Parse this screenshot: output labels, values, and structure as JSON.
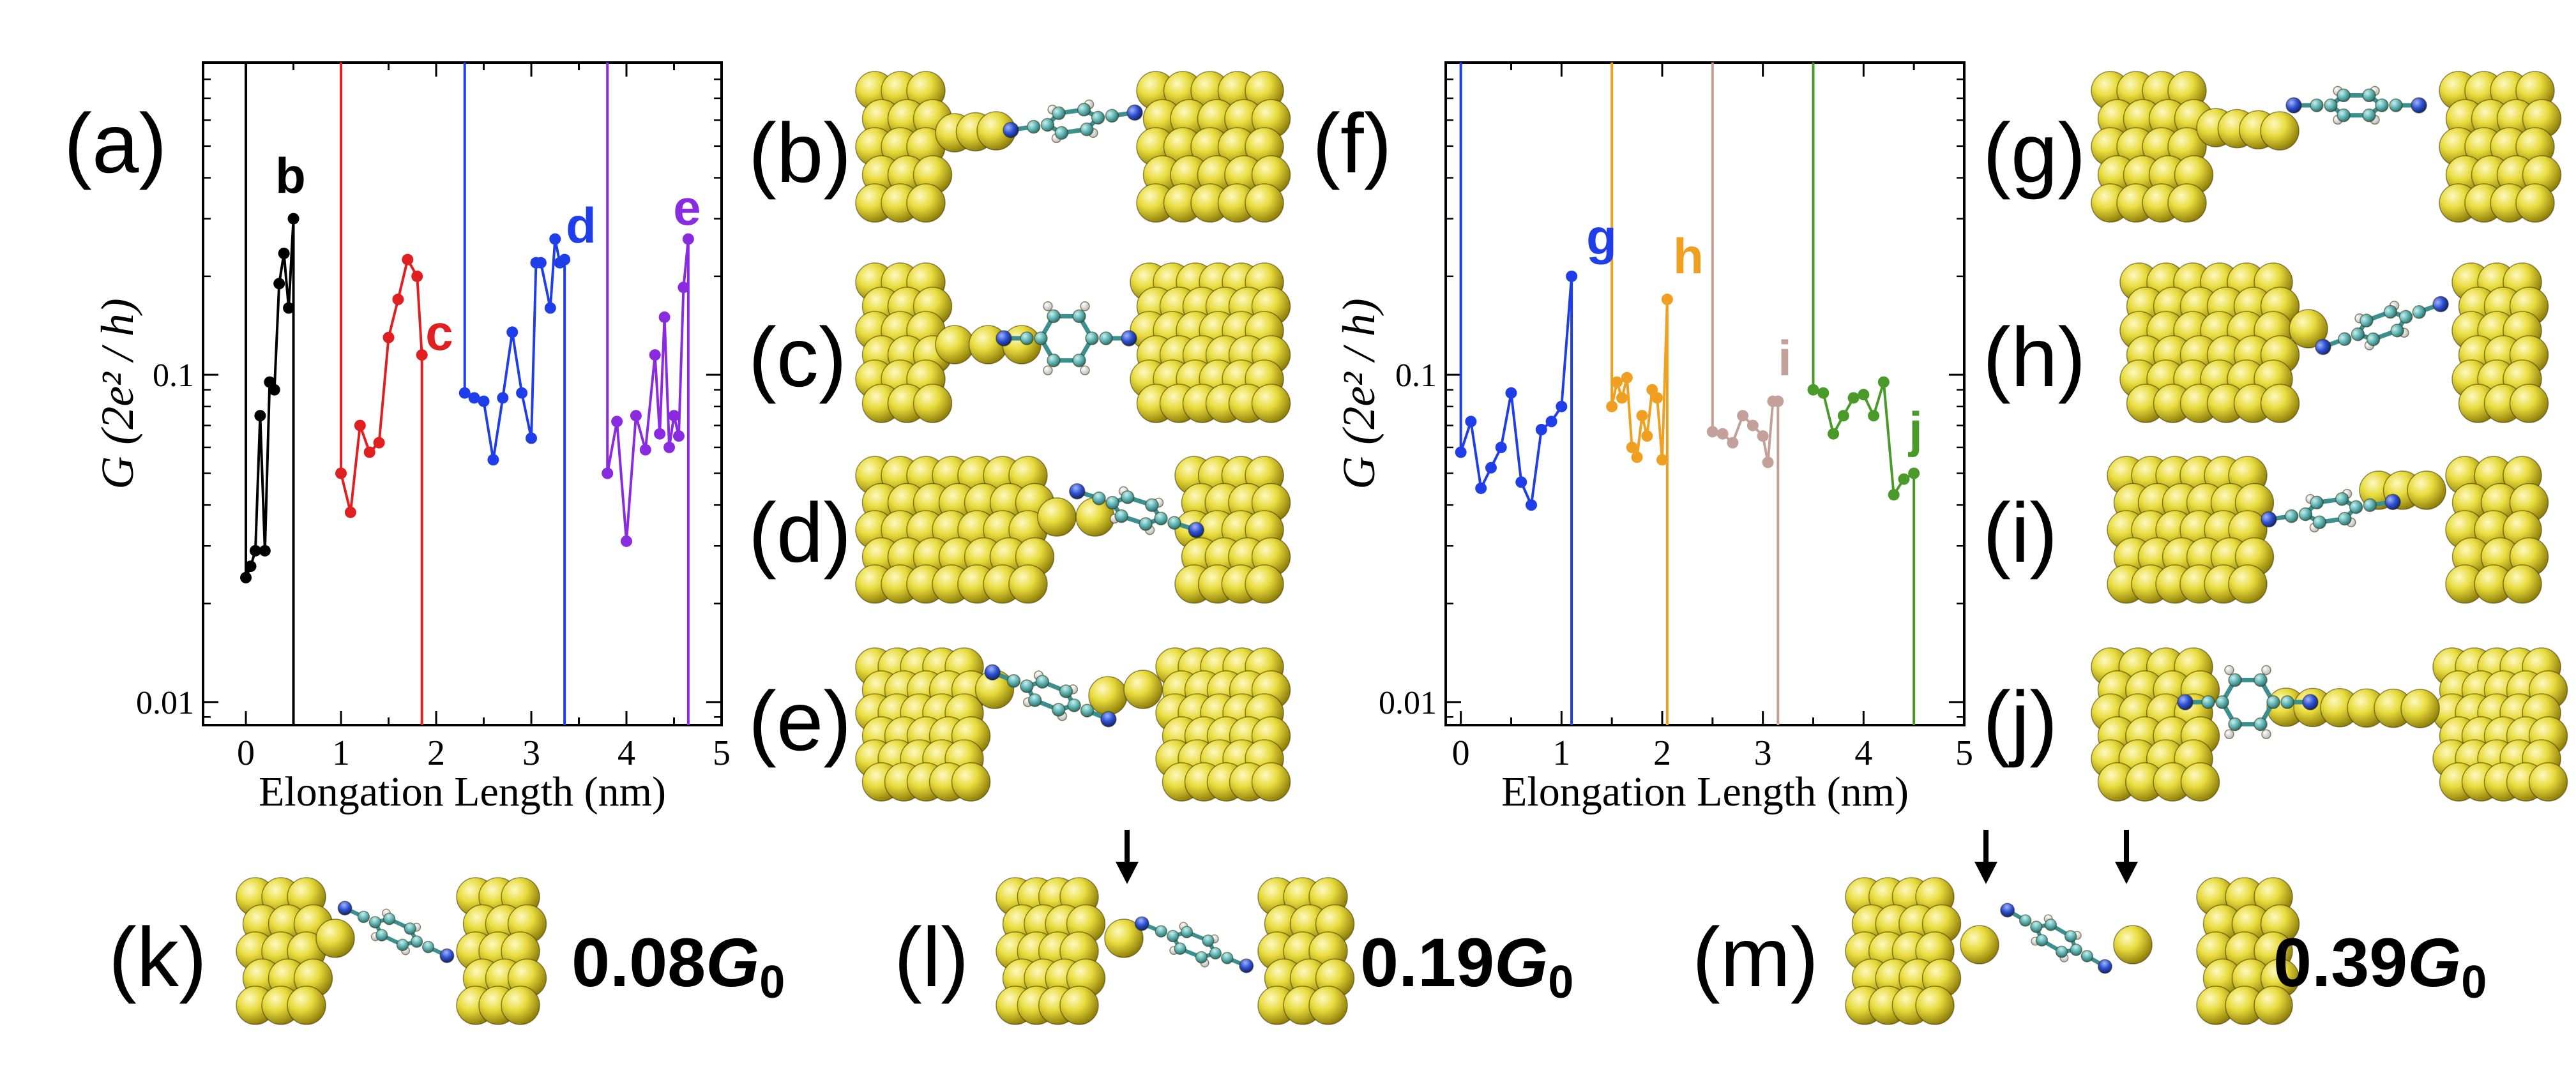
{
  "colors": {
    "gold": "#e6d93a",
    "gold_dark": "#7a6b05",
    "gold_light": "#fbf5a2",
    "carbon": "#5fb3b3",
    "nitrogen": "#2c4fd0",
    "hydrogen": "#e8e8e8"
  },
  "panel_labels": {
    "a": "(a)",
    "b": "(b)",
    "c": "(c)",
    "d": "(d)",
    "e": "(e)",
    "f": "(f)",
    "g": "(g)",
    "h": "(h)",
    "i": "(i)",
    "j": "(j)",
    "k": "(k)",
    "l": "(l)",
    "m": "(m)"
  },
  "conductance_values": {
    "k": {
      "number": "0.08",
      "g": "G",
      "sub": "0"
    },
    "l": {
      "number": "0.19",
      "g": "G",
      "sub": "0"
    },
    "m": {
      "number": "0.39",
      "g": "G",
      "sub": "0"
    }
  },
  "chart_data": [
    {
      "type": "line",
      "panel": "(a)",
      "xlabel": "Elongation Length (nm)",
      "ylabel": "G (2e²/ h)",
      "yscale": "log",
      "xlim": [
        -0.45,
        5.0
      ],
      "ylim": [
        0.0085,
        0.9
      ],
      "xticks": [
        0,
        1,
        2,
        3,
        4,
        5
      ],
      "xtick_labels": [
        "0",
        "1",
        "2",
        "3",
        "4",
        "5"
      ],
      "yticks": [
        0.01,
        0.1
      ],
      "ytick_labels": [
        "0.01",
        "0.1"
      ],
      "series": [
        {
          "name": "b",
          "color": "#000000",
          "x": [
            0.0,
            0.05,
            0.1,
            0.15,
            0.2,
            0.25,
            0.3,
            0.35,
            0.4,
            0.45,
            0.5
          ],
          "y": [
            0.024,
            0.026,
            0.029,
            0.075,
            0.029,
            0.095,
            0.09,
            0.19,
            0.235,
            0.16,
            0.3
          ],
          "break_x": 0.5,
          "label": "b"
        },
        {
          "name": "c",
          "color": "#e02020",
          "x": [
            1.0,
            1.1,
            1.2,
            1.3,
            1.4,
            1.5,
            1.6,
            1.7,
            1.8,
            1.85
          ],
          "y": [
            0.05,
            0.038,
            0.07,
            0.058,
            0.062,
            0.13,
            0.17,
            0.225,
            0.2,
            0.115
          ],
          "break_x": 1.85,
          "label": "c"
        },
        {
          "name": "d",
          "color": "#1f3de8",
          "x": [
            2.3,
            2.4,
            2.5,
            2.6,
            2.7,
            2.8,
            2.9,
            3.0,
            3.05,
            3.1,
            3.2,
            3.25,
            3.3,
            3.35
          ],
          "y": [
            0.088,
            0.085,
            0.083,
            0.055,
            0.085,
            0.135,
            0.088,
            0.064,
            0.22,
            0.22,
            0.16,
            0.26,
            0.22,
            0.225
          ],
          "break_x": 3.35,
          "label": "d"
        },
        {
          "name": "e",
          "color": "#8a2be2",
          "x": [
            3.8,
            3.9,
            4.0,
            4.1,
            4.2,
            4.3,
            4.35,
            4.4,
            4.45,
            4.5,
            4.55,
            4.6,
            4.65
          ],
          "y": [
            0.05,
            0.072,
            0.031,
            0.075,
            0.059,
            0.115,
            0.066,
            0.15,
            0.06,
            0.075,
            0.065,
            0.185,
            0.26
          ],
          "break_x": 4.65,
          "label": "e"
        }
      ]
    },
    {
      "type": "line",
      "panel": "(f)",
      "xlabel": "Elongation Length (nm)",
      "ylabel": "G (2e²/ h)",
      "yscale": "log",
      "xlim": [
        -0.15,
        5.0
      ],
      "ylim": [
        0.0085,
        0.9
      ],
      "xticks": [
        0,
        1,
        2,
        3,
        4,
        5
      ],
      "xtick_labels": [
        "0",
        "1",
        "2",
        "3",
        "4",
        "5"
      ],
      "yticks": [
        0.01,
        0.1
      ],
      "ytick_labels": [
        "0.01",
        "0.1"
      ],
      "series": [
        {
          "name": "g",
          "color": "#1f3de8",
          "x": [
            0.0,
            0.1,
            0.2,
            0.3,
            0.4,
            0.5,
            0.6,
            0.7,
            0.8,
            0.9,
            1.0,
            1.1
          ],
          "y": [
            0.058,
            0.072,
            0.045,
            0.052,
            0.06,
            0.088,
            0.047,
            0.04,
            0.068,
            0.072,
            0.08,
            0.2
          ],
          "break_x": 1.1,
          "label": "g"
        },
        {
          "name": "h",
          "color": "#f0a020",
          "x": [
            1.5,
            1.55,
            1.6,
            1.65,
            1.7,
            1.75,
            1.8,
            1.85,
            1.9,
            1.95,
            2.0,
            2.05
          ],
          "y": [
            0.08,
            0.095,
            0.085,
            0.098,
            0.06,
            0.056,
            0.075,
            0.065,
            0.09,
            0.085,
            0.055,
            0.17
          ],
          "break_x": 2.05,
          "label": "h"
        },
        {
          "name": "i",
          "color": "#c4a09a",
          "x": [
            2.5,
            2.6,
            2.7,
            2.8,
            2.9,
            3.0,
            3.05,
            3.1,
            3.15
          ],
          "y": [
            0.067,
            0.066,
            0.062,
            0.075,
            0.07,
            0.065,
            0.054,
            0.083,
            0.083
          ],
          "break_x": 3.15,
          "label": "i"
        },
        {
          "name": "j",
          "color": "#4a9a2a",
          "x": [
            3.5,
            3.6,
            3.7,
            3.8,
            3.9,
            4.0,
            4.1,
            4.2,
            4.3,
            4.4,
            4.5
          ],
          "y": [
            0.09,
            0.088,
            0.066,
            0.075,
            0.085,
            0.087,
            0.075,
            0.095,
            0.043,
            0.048,
            0.05
          ],
          "break_x": 4.5,
          "label": "j"
        }
      ]
    }
  ]
}
